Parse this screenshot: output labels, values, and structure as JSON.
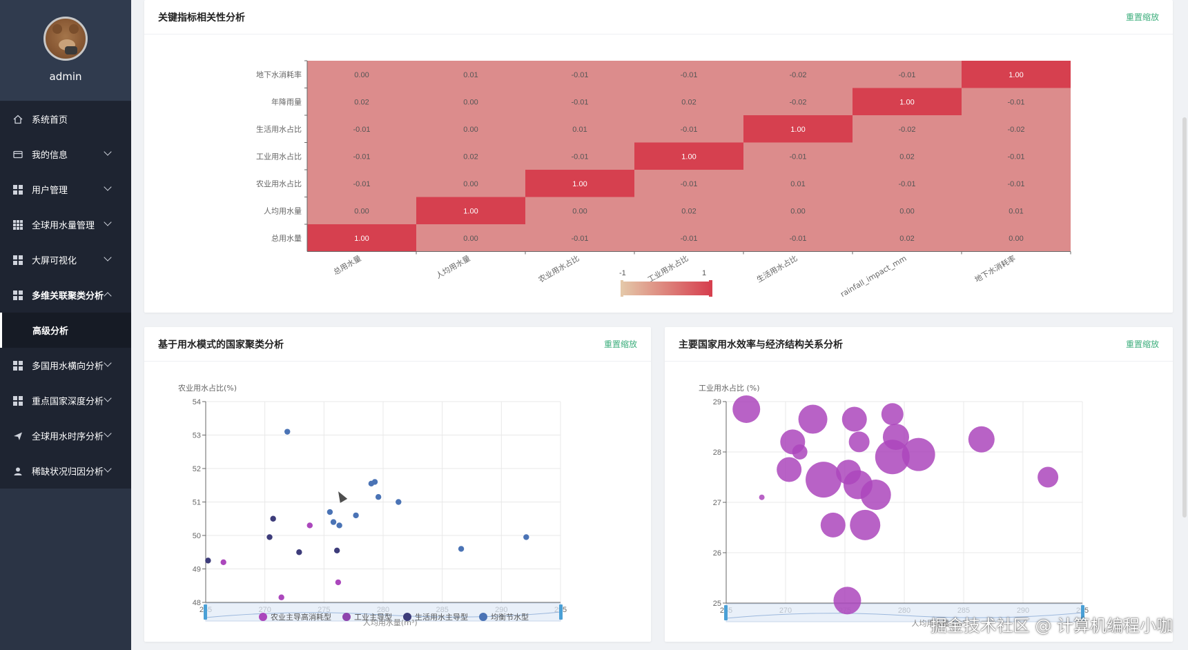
{
  "sidebar": {
    "username": "admin",
    "items": [
      {
        "label": "系统首页",
        "icon": "home-icon"
      },
      {
        "label": "我的信息",
        "icon": "card-icon"
      },
      {
        "label": "用户管理",
        "icon": "grid-icon"
      },
      {
        "label": "全球用水量管理",
        "icon": "grid9-icon"
      },
      {
        "label": "大屏可视化",
        "icon": "grid-icon"
      },
      {
        "label": "多维关联聚类分析",
        "icon": "grid-icon"
      },
      {
        "label": "高级分析",
        "icon": ""
      },
      {
        "label": "多国用水横向分析",
        "icon": "grid-icon"
      },
      {
        "label": "重点国家深度分析",
        "icon": "grid-icon"
      },
      {
        "label": "全球用水时序分析",
        "icon": "send-icon"
      },
      {
        "label": "稀缺状况归因分析",
        "icon": "user-icon"
      }
    ]
  },
  "cards": {
    "heatmap": {
      "title": "关键指标相关性分析",
      "reset": "重置缩放"
    },
    "cluster": {
      "title": "基于用水模式的国家聚类分析",
      "reset": "重置缩放"
    },
    "bubble": {
      "title": "主要国家用水效率与经济结构关系分析",
      "reset": "重置缩放"
    }
  },
  "watermark": "掘金技术社区 @ 计算机编程小咖",
  "colors": {
    "heat_max": "#d6404f",
    "heat_mid": "#dc8c8c",
    "heat_min": "#e4c7a8",
    "purple": "#ab47bc",
    "navy": "#3d3c7a",
    "blue": "#4a73b5",
    "accent": "#3cae7c"
  },
  "chart_data": [
    {
      "type": "heatmap",
      "y_categories": [
        "总用水量",
        "人均用水量",
        "农业用水占比",
        "工业用水占比",
        "生活用水占比",
        "年降雨量",
        "地下水消耗率"
      ],
      "x_categories": [
        "总用水量",
        "人均用水量",
        "农业用水占比",
        "工业用水占比",
        "生活用水占比",
        "rainfall_impact_mm",
        "地下水消耗率"
      ],
      "matrix": [
        [
          1.0,
          0.0,
          -0.01,
          -0.01,
          -0.01,
          0.02,
          0.0
        ],
        [
          0.0,
          1.0,
          0.0,
          0.02,
          0.0,
          0.0,
          0.01
        ],
        [
          -0.01,
          0.0,
          1.0,
          -0.01,
          0.01,
          -0.01,
          -0.01
        ],
        [
          -0.01,
          0.02,
          -0.01,
          1.0,
          -0.01,
          0.02,
          -0.01
        ],
        [
          -0.01,
          0.0,
          0.01,
          -0.01,
          1.0,
          -0.02,
          -0.02
        ],
        [
          0.02,
          0.0,
          -0.01,
          0.02,
          -0.02,
          1.0,
          -0.01
        ],
        [
          0.0,
          0.01,
          -0.01,
          -0.01,
          -0.02,
          -0.01,
          1.0
        ]
      ],
      "visual_map": {
        "min": -1,
        "max": 1,
        "min_label": "-1",
        "max_label": "1"
      }
    },
    {
      "type": "scatter",
      "ylabel": "农业用水占比(%)",
      "xlabel": "人均用水量(m³)",
      "xlim": [
        265,
        295
      ],
      "ylim": [
        48,
        54
      ],
      "x_ticks": [
        "265",
        "270",
        "275",
        "280",
        "285",
        "290",
        "295"
      ],
      "y_ticks": [
        "48",
        "49",
        "50",
        "51",
        "52",
        "53",
        "54"
      ],
      "series": [
        {
          "name": "农业主导高消耗型",
          "color": "#ab47bc",
          "points": [
            [
              266.5,
              49.2
            ],
            [
              271.4,
              48.15
            ],
            [
              273.8,
              50.3
            ],
            [
              276.2,
              48.6
            ]
          ]
        },
        {
          "name": "工业主导型",
          "color": "#8e44ad",
          "points": []
        },
        {
          "name": "生活用水主导型",
          "color": "#3d3c7a",
          "points": [
            [
              265.2,
              49.25
            ],
            [
              270.4,
              49.95
            ],
            [
              270.7,
              50.5
            ],
            [
              272.9,
              49.5
            ],
            [
              276.1,
              49.55
            ]
          ]
        },
        {
          "name": "均衡节水型",
          "color": "#4a73b5",
          "points": [
            [
              271.9,
              53.1
            ],
            [
              275.5,
              50.7
            ],
            [
              275.8,
              50.4
            ],
            [
              276.3,
              50.3
            ],
            [
              277.7,
              50.6
            ],
            [
              279.0,
              51.55
            ],
            [
              279.3,
              51.6
            ],
            [
              279.6,
              51.15
            ],
            [
              281.3,
              51.0
            ],
            [
              286.6,
              49.6
            ],
            [
              292.1,
              49.95
            ]
          ]
        }
      ]
    },
    {
      "type": "scatter",
      "ylabel": "工业用水占比 (%)",
      "xlabel": "人均用水量 (m³)",
      "xlim": [
        265,
        295
      ],
      "ylim": [
        25,
        29
      ],
      "x_ticks": [
        "265",
        "270",
        "275",
        "280",
        "285",
        "290",
        "295"
      ],
      "y_ticks": [
        "25",
        "26",
        "27",
        "28",
        "29"
      ],
      "series": [
        {
          "name": "countries",
          "color": "#ab47bc",
          "points": [
            [
              266.7,
              28.85,
              20
            ],
            [
              268.0,
              27.1,
              4
            ],
            [
              270.6,
              28.2,
              18
            ],
            [
              271.2,
              28.0,
              11
            ],
            [
              270.3,
              27.65,
              18
            ],
            [
              272.3,
              28.65,
              21
            ],
            [
              273.2,
              27.45,
              26
            ],
            [
              274.0,
              26.55,
              18
            ],
            [
              275.2,
              25.05,
              20
            ],
            [
              275.3,
              27.6,
              18
            ],
            [
              275.8,
              28.65,
              18
            ],
            [
              276.2,
              28.2,
              15
            ],
            [
              276.1,
              27.35,
              21
            ],
            [
              276.7,
              26.55,
              22
            ],
            [
              277.6,
              27.15,
              22
            ],
            [
              279.0,
              28.75,
              16
            ],
            [
              279.3,
              28.3,
              19
            ],
            [
              279.0,
              27.9,
              25
            ],
            [
              281.2,
              27.95,
              24
            ],
            [
              286.5,
              28.25,
              19
            ],
            [
              292.1,
              27.5,
              15
            ]
          ]
        }
      ]
    }
  ]
}
